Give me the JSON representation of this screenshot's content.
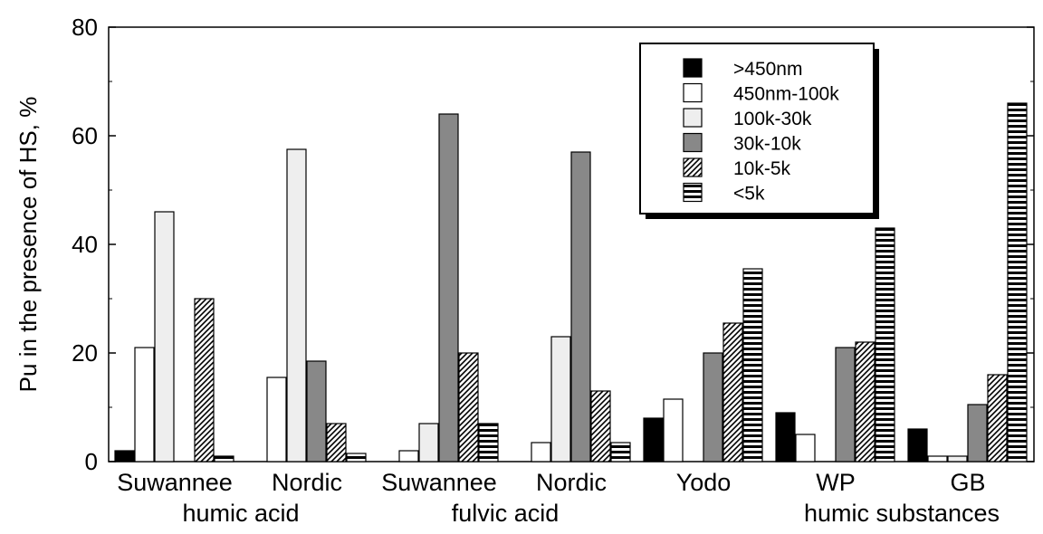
{
  "chart_data": {
    "type": "bar",
    "ylabel": "Pu in the presence of HS, %",
    "ylim": [
      0,
      80
    ],
    "yticks": [
      0,
      20,
      40,
      60,
      80
    ],
    "categories": [
      "Suwannee",
      "Nordic",
      "Suwannee",
      "Nordic",
      "Yodo",
      "WP",
      "GB"
    ],
    "group_labels": [
      {
        "text": "humic acid",
        "spans": [
          0,
          1
        ]
      },
      {
        "text": "fulvic acid",
        "spans": [
          2,
          3
        ]
      },
      {
        "text": "humic substances",
        "spans": [
          5,
          6
        ]
      }
    ],
    "legend_position": "top-right",
    "series": [
      {
        "name": ">450nm",
        "pattern": "solid-black",
        "values": [
          2,
          0,
          0,
          0,
          8,
          9,
          6
        ]
      },
      {
        "name": "450nm-100k",
        "pattern": "white",
        "values": [
          21,
          15.5,
          2,
          3.5,
          11.5,
          5,
          1
        ]
      },
      {
        "name": "100k-30k",
        "pattern": "light-gray",
        "values": [
          46,
          57.5,
          7,
          23,
          0,
          0,
          1
        ]
      },
      {
        "name": "30k-10k",
        "pattern": "dark-gray",
        "values": [
          0,
          18.5,
          64,
          57,
          20,
          21,
          10.5
        ]
      },
      {
        "name": "10k-5k",
        "pattern": "diagonal-hatch",
        "values": [
          30,
          7,
          20,
          13,
          25.5,
          22,
          16
        ]
      },
      {
        "name": "<5k",
        "pattern": "horizontal-stripes",
        "values": [
          1,
          1.5,
          7,
          3.5,
          35.5,
          43,
          66
        ]
      }
    ]
  },
  "colors": {
    "solid-black": "#000000",
    "white": "#ffffff",
    "light-gray": "#eeeeee",
    "dark-gray": "#888888",
    "stroke": "#000000"
  }
}
